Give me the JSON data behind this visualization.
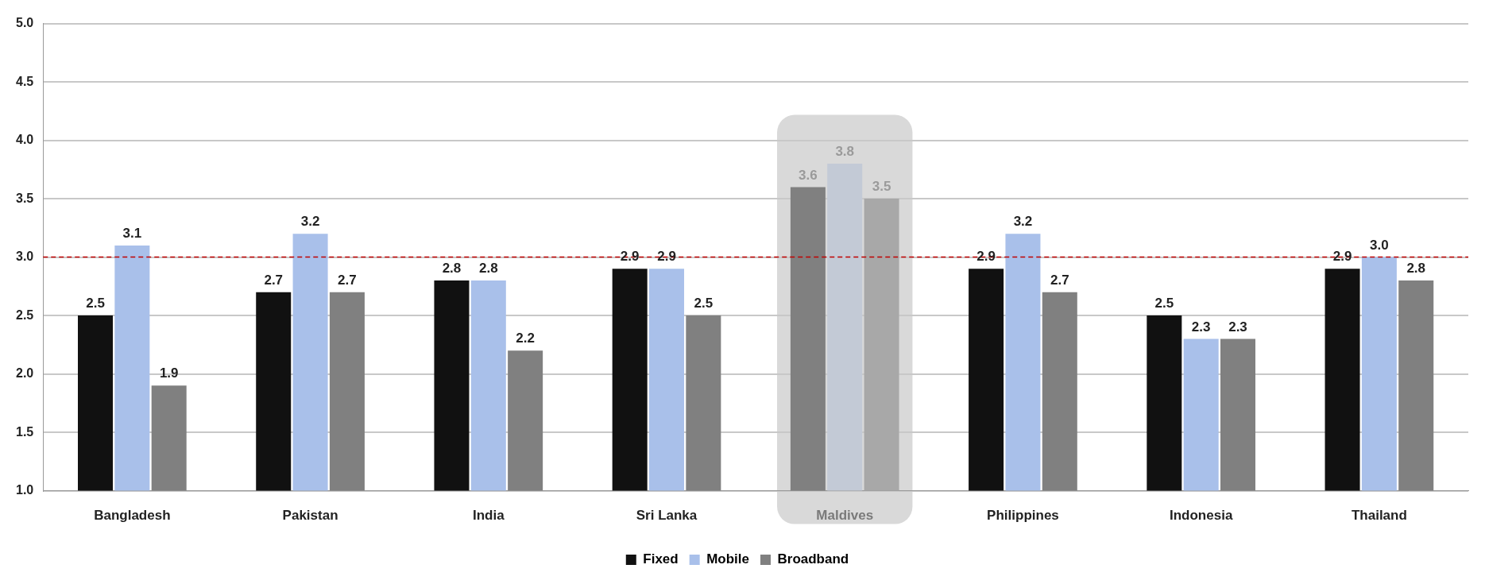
{
  "chart_data": {
    "type": "bar",
    "categories": [
      "Bangladesh",
      "Pakistan",
      "India",
      "Sri Lanka",
      "Maldives",
      "Philippines",
      "Indonesia",
      "Thailand"
    ],
    "series": [
      {
        "name": "Fixed",
        "color": "#111111",
        "colors": [
          "#111111",
          "#111111",
          "#111111",
          "#111111",
          "#808080",
          "#111111",
          "#111111",
          "#111111"
        ],
        "values": [
          2.5,
          2.7,
          2.8,
          2.9,
          3.6,
          2.9,
          2.5,
          2.9
        ],
        "value_labels": [
          "2.5",
          "2.7",
          "2.8",
          "2.9",
          "3.6",
          "2.9",
          "2.5",
          "2.9"
        ]
      },
      {
        "name": "Mobile",
        "color": "#a9c0ea",
        "colors": [
          "#a9c0ea",
          "#a9c0ea",
          "#a9c0ea",
          "#a9c0ea",
          "#c3cad6",
          "#a9c0ea",
          "#a9c0ea",
          "#a9c0ea"
        ],
        "values": [
          3.1,
          3.2,
          2.8,
          2.9,
          3.8,
          3.2,
          2.3,
          3.0
        ],
        "value_labels": [
          "3.1",
          "3.2",
          "2.8",
          "2.9",
          "3.8",
          "3.2",
          "2.3",
          "3.0"
        ]
      },
      {
        "name": "Broadband",
        "color": "#808080",
        "colors": [
          "#808080",
          "#808080",
          "#808080",
          "#808080",
          "#a8a8a8",
          "#808080",
          "#808080",
          "#808080"
        ],
        "values": [
          1.9,
          2.7,
          2.2,
          2.5,
          3.5,
          2.7,
          2.3,
          2.8
        ],
        "value_labels": [
          "1.9",
          "2.7",
          "2.2",
          "2.5",
          "3.5",
          "2.7",
          "2.3",
          "2.8"
        ]
      }
    ],
    "ylim": [
      1.0,
      5.0
    ],
    "yticks": [
      {
        "value": 1.0,
        "label": "1.0"
      },
      {
        "value": 1.5,
        "label": "1.5"
      },
      {
        "value": 2.0,
        "label": "2.0"
      },
      {
        "value": 2.5,
        "label": "2.5"
      },
      {
        "value": 3.0,
        "label": "3.0"
      },
      {
        "value": 3.5,
        "label": "3.5"
      },
      {
        "value": 4.0,
        "label": "4.0"
      },
      {
        "value": 4.5,
        "label": "4.5"
      },
      {
        "value": 5.0,
        "label": "5.0"
      }
    ],
    "grid": "y",
    "legend": "bottom",
    "ref_lines": [
      {
        "axis": "y",
        "value": 3.0,
        "color": "#c00000",
        "line_style": "dashed"
      }
    ],
    "bands": [
      {
        "axis": "x",
        "from": "Maldives",
        "to": "Maldives",
        "color": "#d9d9d9"
      }
    ]
  }
}
